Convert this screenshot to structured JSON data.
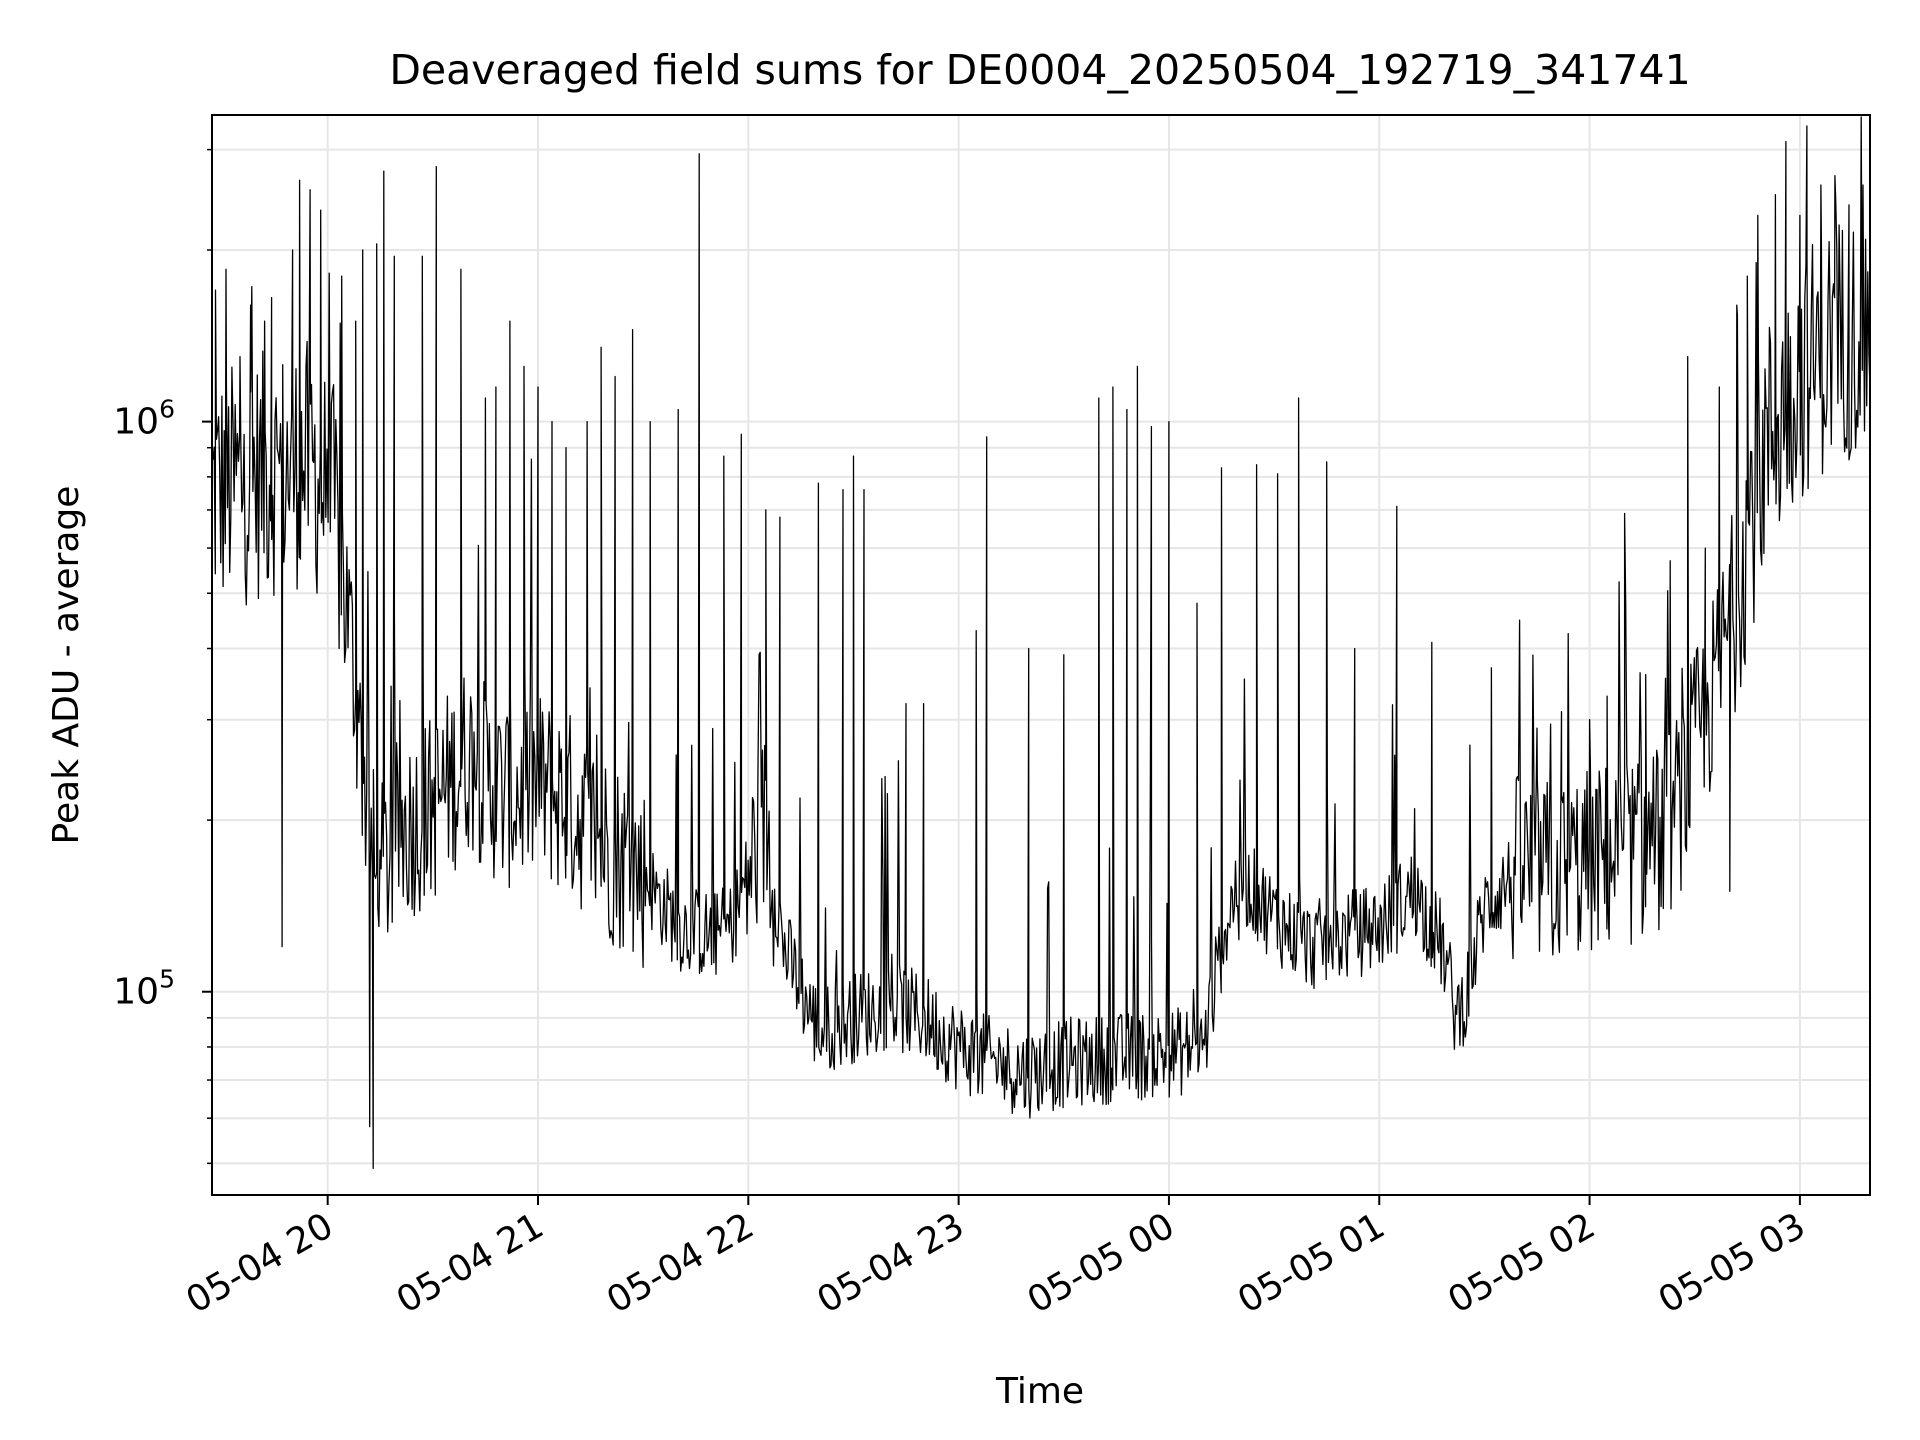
{
  "chart_data": {
    "type": "line",
    "title": "Deaveraged field sums for DE0004_20250504_192719_341741",
    "xlabel": "Time",
    "ylabel": "Peak ADU - average",
    "x_range": [
      "2025-05-04T19:27:00",
      "2025-05-05T03:20:00"
    ],
    "ylim": [
      44000,
      3450000
    ],
    "yscale": "log",
    "grid": true,
    "legend": "none",
    "line_color": "#000000",
    "x_ticks": [
      {
        "time": "2025-05-04T20:00:00",
        "label": "05-04 20"
      },
      {
        "time": "2025-05-04T21:00:00",
        "label": "05-04 21"
      },
      {
        "time": "2025-05-04T22:00:00",
        "label": "05-04 22"
      },
      {
        "time": "2025-05-04T23:00:00",
        "label": "05-04 23"
      },
      {
        "time": "2025-05-05T00:00:00",
        "label": "05-05 00"
      },
      {
        "time": "2025-05-05T01:00:00",
        "label": "05-05 01"
      },
      {
        "time": "2025-05-05T02:00:00",
        "label": "05-05 02"
      },
      {
        "time": "2025-05-05T03:00:00",
        "label": "05-05 03"
      }
    ],
    "y_ticks": [
      {
        "value": 100000,
        "base": "10",
        "exp": "5"
      },
      {
        "value": 1000000,
        "base": "10",
        "exp": "6"
      }
    ],
    "baseline": {
      "x": [
        "2025-05-04T19:27:00",
        "2025-05-04T19:40:00",
        "2025-05-04T19:55:00",
        "2025-05-04T20:02:00",
        "2025-05-04T20:06:00",
        "2025-05-04T20:10:00",
        "2025-05-04T20:14:00",
        "2025-05-04T20:20:00",
        "2025-05-04T20:30:00",
        "2025-05-04T20:40:00",
        "2025-05-04T20:50:00",
        "2025-05-04T21:00:00",
        "2025-05-04T21:10:00",
        "2025-05-04T21:20:00",
        "2025-05-04T21:30:00",
        "2025-05-04T21:40:00",
        "2025-05-04T21:50:00",
        "2025-05-04T21:55:00",
        "2025-05-04T22:05:00",
        "2025-05-04T22:10:00",
        "2025-05-04T22:20:00",
        "2025-05-04T22:30:00",
        "2025-05-04T22:40:00",
        "2025-05-04T22:50:00",
        "2025-05-04T23:00:00",
        "2025-05-04T23:10:00",
        "2025-05-04T23:20:00",
        "2025-05-04T23:30:00",
        "2025-05-04T23:40:00",
        "2025-05-04T23:50:00",
        "2025-05-05T00:00:00",
        "2025-05-05T00:10:00",
        "2025-05-05T00:15:00",
        "2025-05-05T00:20:00",
        "2025-05-05T00:30:00",
        "2025-05-05T00:40:00",
        "2025-05-05T00:50:00",
        "2025-05-05T01:00:00",
        "2025-05-05T01:10:00",
        "2025-05-05T01:18:00",
        "2025-05-05T01:22:00",
        "2025-05-05T01:25:00",
        "2025-05-05T01:30:00",
        "2025-05-05T01:40:00",
        "2025-05-05T01:50:00",
        "2025-05-05T02:00:00",
        "2025-05-05T02:10:00",
        "2025-05-05T02:20:00",
        "2025-05-05T02:25:00",
        "2025-05-05T02:30:00",
        "2025-05-05T02:35:00",
        "2025-05-05T02:40:00",
        "2025-05-05T02:45:00",
        "2025-05-05T02:50:00",
        "2025-05-05T03:00:00",
        "2025-05-05T03:10:00",
        "2025-05-05T03:20:00"
      ],
      "y": [
        750000,
        800000,
        850000,
        700000,
        450000,
        250000,
        150000,
        190000,
        210000,
        260000,
        220000,
        230000,
        210000,
        180000,
        160000,
        130000,
        125000,
        130000,
        200000,
        120000,
        85000,
        90000,
        95000,
        90000,
        80000,
        75000,
        72000,
        75000,
        76000,
        77000,
        78000,
        80000,
        120000,
        160000,
        135000,
        120000,
        125000,
        130000,
        150000,
        120000,
        90000,
        100000,
        140000,
        165000,
        160000,
        170000,
        175000,
        185000,
        210000,
        270000,
        330000,
        450000,
        650000,
        900000,
        1200000,
        1400000,
        1450000
      ]
    },
    "spikes": [
      {
        "x": "2025-05-04T19:28:00",
        "y": 1700000
      },
      {
        "x": "2025-05-04T19:31:00",
        "y": 1850000
      },
      {
        "x": "2025-05-04T19:35:00",
        "y": 1300000
      },
      {
        "x": "2025-05-04T19:38:00",
        "y": 1600000
      },
      {
        "x": "2025-05-04T19:42:00",
        "y": 1500000
      },
      {
        "x": "2025-05-04T19:44:00",
        "y": 1650000
      },
      {
        "x": "2025-05-04T19:47:00",
        "y": 120000
      },
      {
        "x": "2025-05-04T19:50:00",
        "y": 2000000
      },
      {
        "x": "2025-05-04T19:52:00",
        "y": 2650000
      },
      {
        "x": "2025-05-04T19:55:00",
        "y": 2550000
      },
      {
        "x": "2025-05-04T19:58:00",
        "y": 2350000
      },
      {
        "x": "2025-05-04T20:04:00",
        "y": 1800000
      },
      {
        "x": "2025-05-04T20:08:00",
        "y": 1500000
      },
      {
        "x": "2025-05-04T20:10:00",
        "y": 2000000
      },
      {
        "x": "2025-05-04T20:12:00",
        "y": 58000
      },
      {
        "x": "2025-05-04T20:13:00",
        "y": 49000
      },
      {
        "x": "2025-05-04T20:14:00",
        "y": 2050000
      },
      {
        "x": "2025-05-04T20:16:00",
        "y": 2750000
      },
      {
        "x": "2025-05-04T20:19:00",
        "y": 1950000
      },
      {
        "x": "2025-05-04T20:27:00",
        "y": 1950000
      },
      {
        "x": "2025-05-04T20:31:00",
        "y": 2800000
      },
      {
        "x": "2025-05-04T20:38:00",
        "y": 1850000
      },
      {
        "x": "2025-05-04T20:45:00",
        "y": 1100000
      },
      {
        "x": "2025-05-04T20:48:00",
        "y": 1150000
      },
      {
        "x": "2025-05-04T20:52:00",
        "y": 1500000
      },
      {
        "x": "2025-05-04T20:56:00",
        "y": 1250000
      },
      {
        "x": "2025-05-04T21:00:00",
        "y": 1150000
      },
      {
        "x": "2025-05-04T21:04:00",
        "y": 1000000
      },
      {
        "x": "2025-05-04T21:08:00",
        "y": 900000
      },
      {
        "x": "2025-05-04T21:14:00",
        "y": 1000000
      },
      {
        "x": "2025-05-04T21:18:00",
        "y": 1350000
      },
      {
        "x": "2025-05-04T21:22:00",
        "y": 1200000
      },
      {
        "x": "2025-05-04T21:27:00",
        "y": 1450000
      },
      {
        "x": "2025-05-04T21:32:00",
        "y": 1000000
      },
      {
        "x": "2025-05-04T21:40:00",
        "y": 1050000
      },
      {
        "x": "2025-05-04T21:46:00",
        "y": 2950000
      },
      {
        "x": "2025-05-04T21:53:00",
        "y": 870000
      },
      {
        "x": "2025-05-04T21:58:00",
        "y": 950000
      },
      {
        "x": "2025-05-04T22:05:00",
        "y": 700000
      },
      {
        "x": "2025-05-04T22:09:00",
        "y": 680000
      },
      {
        "x": "2025-05-04T22:20:00",
        "y": 780000
      },
      {
        "x": "2025-05-04T22:27:00",
        "y": 760000
      },
      {
        "x": "2025-05-04T22:30:00",
        "y": 870000
      },
      {
        "x": "2025-05-04T22:33:00",
        "y": 760000
      },
      {
        "x": "2025-05-04T22:45:00",
        "y": 320000
      },
      {
        "x": "2025-05-04T22:50:00",
        "y": 320000
      },
      {
        "x": "2025-05-04T23:05:00",
        "y": 430000
      },
      {
        "x": "2025-05-04T23:08:00",
        "y": 940000
      },
      {
        "x": "2025-05-04T23:20:00",
        "y": 400000
      },
      {
        "x": "2025-05-04T23:30:00",
        "y": 390000
      },
      {
        "x": "2025-05-04T23:40:00",
        "y": 1100000
      },
      {
        "x": "2025-05-04T23:44:00",
        "y": 1150000
      },
      {
        "x": "2025-05-04T23:48:00",
        "y": 1050000
      },
      {
        "x": "2025-05-04T23:51:00",
        "y": 1250000
      },
      {
        "x": "2025-05-04T23:55:00",
        "y": 980000
      },
      {
        "x": "2025-05-05T00:00:00",
        "y": 1000000
      },
      {
        "x": "2025-05-05T00:08:00",
        "y": 480000
      },
      {
        "x": "2025-05-05T00:15:00",
        "y": 830000
      },
      {
        "x": "2025-05-05T00:25:00",
        "y": 840000
      },
      {
        "x": "2025-05-05T00:31:00",
        "y": 810000
      },
      {
        "x": "2025-05-05T00:37:00",
        "y": 1100000
      },
      {
        "x": "2025-05-05T00:45:00",
        "y": 850000
      },
      {
        "x": "2025-05-05T00:53:00",
        "y": 400000
      },
      {
        "x": "2025-05-05T01:05:00",
        "y": 710000
      },
      {
        "x": "2025-05-05T01:15:00",
        "y": 410000
      },
      {
        "x": "2025-05-05T01:32:00",
        "y": 370000
      },
      {
        "x": "2025-05-05T01:45:00",
        "y": 290000
      },
      {
        "x": "2025-05-05T01:52:00",
        "y": 310000
      },
      {
        "x": "2025-05-05T02:00:00",
        "y": 300000
      },
      {
        "x": "2025-05-05T02:05:00",
        "y": 330000
      },
      {
        "x": "2025-05-05T02:10:00",
        "y": 690000
      },
      {
        "x": "2025-05-05T02:16:00",
        "y": 360000
      },
      {
        "x": "2025-05-05T02:23:00",
        "y": 570000
      },
      {
        "x": "2025-05-05T02:28:00",
        "y": 1300000
      },
      {
        "x": "2025-05-05T02:33:00",
        "y": 600000
      },
      {
        "x": "2025-05-05T02:37:00",
        "y": 1150000
      },
      {
        "x": "2025-05-05T02:40:00",
        "y": 150000
      },
      {
        "x": "2025-05-05T02:42:00",
        "y": 1600000
      },
      {
        "x": "2025-05-05T02:45:00",
        "y": 1800000
      },
      {
        "x": "2025-05-05T02:48:00",
        "y": 2300000
      },
      {
        "x": "2025-05-05T02:53:00",
        "y": 2500000
      },
      {
        "x": "2025-05-05T02:56:00",
        "y": 3100000
      },
      {
        "x": "2025-05-05T03:00:00",
        "y": 2300000
      },
      {
        "x": "2025-05-05T03:02:00",
        "y": 3300000
      },
      {
        "x": "2025-05-05T03:06:00",
        "y": 2600000
      },
      {
        "x": "2025-05-05T03:10:00",
        "y": 2700000
      },
      {
        "x": "2025-05-05T03:14:00",
        "y": 2400000
      },
      {
        "x": "2025-05-05T03:18:00",
        "y": 2600000
      }
    ]
  }
}
